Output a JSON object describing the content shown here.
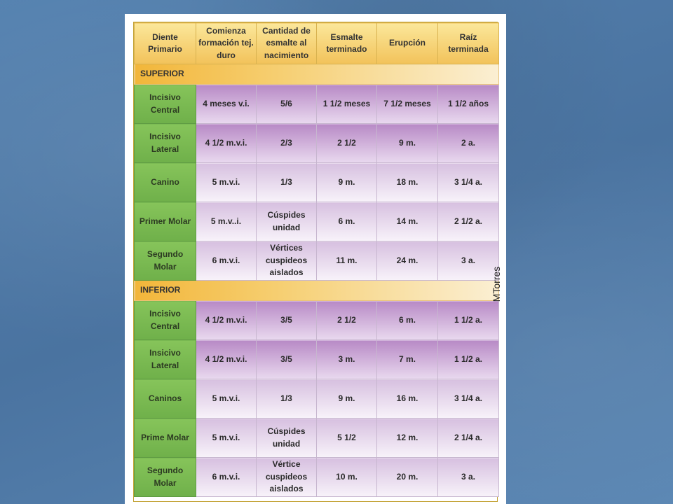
{
  "table": {
    "headers": [
      "Diente Primario",
      "Comienza formación tej. duro",
      "Cantidad de esmalte al nacimiento",
      "Esmalte terminado",
      "Erupción",
      "Raíz terminada"
    ],
    "sections": [
      {
        "title": "SUPERIOR",
        "rows": [
          {
            "tooth": "Incisivo Central",
            "cells": [
              "4 meses v.i.",
              "5/6",
              "1 1/2 meses",
              "7 1/2 meses",
              "1 1/2 años"
            ]
          },
          {
            "tooth": "Incisivo Lateral",
            "cells": [
              "4 1/2 m.v.i.",
              "2/3",
              "2 1/2",
              "9 m.",
              "2 a."
            ]
          },
          {
            "tooth": "Canino",
            "cells": [
              "5 m.v.i.",
              "1/3",
              "9 m.",
              "18 m.",
              "3 1/4 a."
            ]
          },
          {
            "tooth": "Primer Molar",
            "cells": [
              "5 m.v..i.",
              "Cúspides unidad",
              "6 m.",
              "14 m.",
              "2 1/2 a."
            ]
          },
          {
            "tooth": "Segundo Molar",
            "cells": [
              "6 m.v.i.",
              "Vértices cuspideos aislados",
              "11 m.",
              "24 m.",
              "3 a."
            ]
          }
        ]
      },
      {
        "title": "INFERIOR",
        "rows": [
          {
            "tooth": "Incisivo Central",
            "cells": [
              "4 1/2 m.v.i.",
              "3/5",
              "2 1/2",
              "6 m.",
              "1 1/2 a."
            ]
          },
          {
            "tooth": "Insicivo Lateral",
            "cells": [
              "4 1/2 m.v.i.",
              "3/5",
              "3 m.",
              "7 m.",
              "1 1/2 a."
            ]
          },
          {
            "tooth": "Caninos",
            "cells": [
              "5 m.v.i.",
              "1/3",
              "9 m.",
              "16 m.",
              "3 1/4 a."
            ]
          },
          {
            "tooth": "Prime Molar",
            "cells": [
              "5 m.v.i.",
              "Cúspides unidad",
              "5 1/2",
              "12 m.",
              "2 1/4 a."
            ]
          },
          {
            "tooth": "Segundo Molar",
            "cells": [
              "6 m.v.i.",
              "Vértice cuspideos aislados",
              "10 m.",
              "20 m.",
              "3 a."
            ]
          }
        ]
      }
    ]
  },
  "watermark": "MTorres"
}
